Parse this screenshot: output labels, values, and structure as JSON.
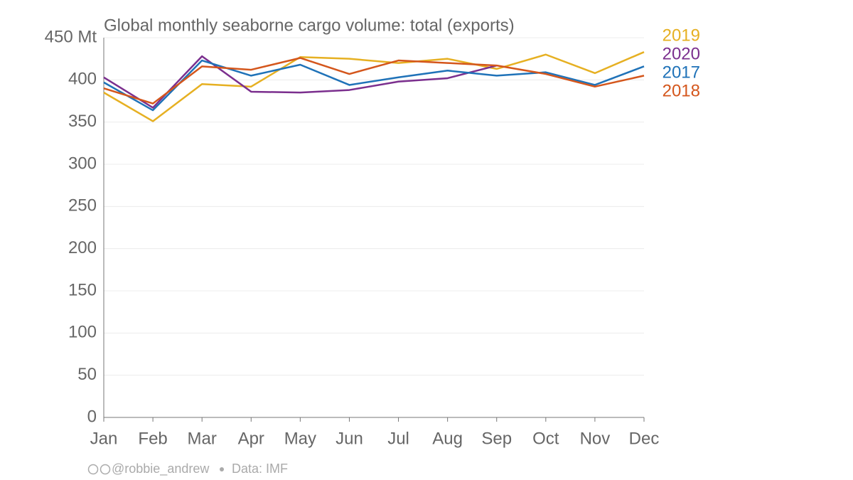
{
  "chart_data": {
    "type": "line",
    "title": "Global monthly seaborne cargo volume: total (exports)",
    "categories": [
      "Jan",
      "Feb",
      "Mar",
      "Apr",
      "May",
      "Jun",
      "Jul",
      "Aug",
      "Sep",
      "Oct",
      "Nov",
      "Dec"
    ],
    "series": [
      {
        "name": "2019",
        "color": "#e6b022",
        "values": [
          385,
          351,
          395,
          392,
          427,
          425,
          420,
          425,
          413,
          430,
          408,
          433
        ]
      },
      {
        "name": "2020",
        "color": "#7b2f8e",
        "values": [
          403,
          367,
          428,
          386,
          385,
          388,
          398,
          402,
          417,
          null,
          null,
          null
        ]
      },
      {
        "name": "2017",
        "color": "#1f72b8",
        "values": [
          397,
          364,
          423,
          405,
          418,
          394,
          403,
          411,
          405,
          409,
          394,
          416
        ]
      },
      {
        "name": "2018",
        "color": "#d4561c",
        "values": [
          390,
          372,
          416,
          412,
          426,
          407,
          423,
          420,
          417,
          407,
          392,
          405
        ]
      }
    ],
    "ylim": [
      0,
      450
    ],
    "yticks": [
      0,
      50,
      100,
      150,
      200,
      250,
      300,
      350,
      400,
      {
        "value": 450,
        "label": "450 Mt"
      }
    ],
    "grid": true,
    "legend": "right",
    "footer": {
      "credit": "@robbie_andrew",
      "source": "Data: IMF"
    }
  }
}
